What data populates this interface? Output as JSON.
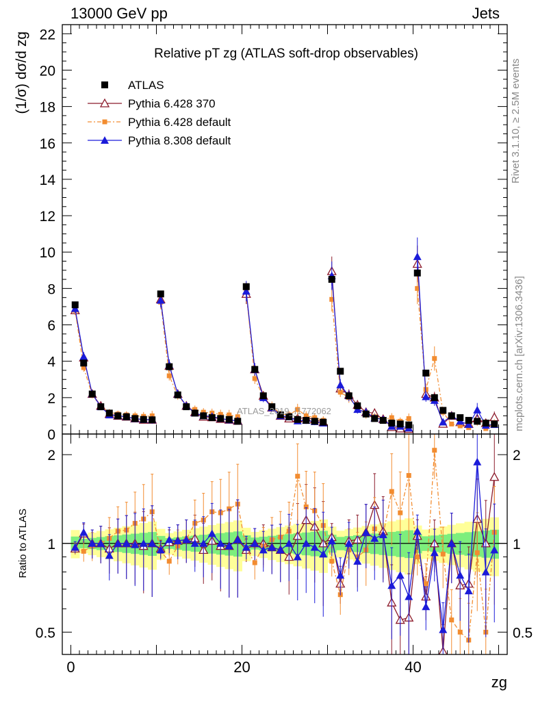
{
  "header": {
    "left": "13000 GeV pp",
    "right": "Jets"
  },
  "side_labels": {
    "rivet": "Rivet 3.1.10, ≥ 2.5M events",
    "mcplots": "mcplots.cern.ch [arXiv:1306.3436]"
  },
  "watermark": "ATLAS_2019_I1772062",
  "chart_data": {
    "type": "scatter",
    "title": "Relative pT zg (ATLAS soft-drop observables)",
    "xlabel": "zg",
    "ylabel": "(1/σ) dσ/d zg",
    "ratio_ylabel": "Ratio to ATLAS",
    "xlim": [
      -1,
      51
    ],
    "ylim": [
      0,
      22.5
    ],
    "ratio_ylim": [
      0.42,
      2.35
    ],
    "ratio_scale": "log",
    "x_ticks": [
      "0",
      "20",
      "40"
    ],
    "y_ticks": [
      "0",
      "2",
      "4",
      "6",
      "8",
      "10",
      "12",
      "14",
      "16",
      "18",
      "20",
      "22"
    ],
    "ratio_ticks": [
      "0.5",
      "1",
      "2"
    ],
    "legend": [
      "ATLAS",
      "Pythia 6.428 370",
      "Pythia 6.428 default",
      "Pythia 8.308 default"
    ],
    "x": [
      0.5,
      1.5,
      2.5,
      3.5,
      4.5,
      5.5,
      6.5,
      7.5,
      8.5,
      9.5,
      10.5,
      11.5,
      12.5,
      13.5,
      14.5,
      15.5,
      16.5,
      17.5,
      18.5,
      19.5,
      20.5,
      21.5,
      22.5,
      23.5,
      24.5,
      25.5,
      26.5,
      27.5,
      28.5,
      29.5,
      30.5,
      31.5,
      32.5,
      33.5,
      34.5,
      35.5,
      36.5,
      37.5,
      38.5,
      39.5,
      40.5,
      41.5,
      42.5,
      43.5,
      44.5,
      45.5,
      46.5,
      47.5,
      48.5,
      49.5
    ],
    "series": [
      {
        "name": "ATLAS",
        "values": [
          7.1,
          3.9,
          2.2,
          1.5,
          1.15,
          1.0,
          0.95,
          0.85,
          0.8,
          0.78,
          7.7,
          3.7,
          2.15,
          1.5,
          1.15,
          1.0,
          0.9,
          0.85,
          0.8,
          0.7,
          8.1,
          3.55,
          2.1,
          1.5,
          1.05,
          0.95,
          0.8,
          0.75,
          0.7,
          0.65,
          8.5,
          3.45,
          2.1,
          1.55,
          1.1,
          0.85,
          0.75,
          0.6,
          0.55,
          0.5,
          8.85,
          3.35,
          2.0,
          1.3,
          1.0,
          0.9,
          0.75,
          0.7,
          0.6,
          0.55
        ]
      },
      {
        "name": "Pythia 6.428 370",
        "values": [
          6.8,
          4.2,
          2.2,
          1.55,
          1.1,
          1.0,
          0.95,
          0.85,
          0.78,
          0.78,
          7.4,
          3.75,
          2.2,
          1.55,
          1.2,
          0.95,
          0.92,
          0.83,
          0.78,
          0.72,
          7.7,
          3.55,
          2.1,
          1.45,
          1.0,
          0.85,
          0.85,
          0.9,
          0.8,
          0.65,
          8.95,
          2.5,
          2.15,
          1.6,
          1.2,
          1.15,
          0.82,
          0.38,
          0.3,
          0.28,
          9.35,
          2.2,
          2.0,
          0.56,
          1.0,
          0.65,
          0.55,
          0.85,
          0.6,
          0.92
        ]
      },
      {
        "name": "Pythia 6.428 default",
        "values": [
          6.8,
          3.65,
          2.15,
          1.5,
          1.2,
          1.1,
          1.05,
          1.0,
          0.97,
          1.0,
          7.25,
          3.2,
          2.1,
          1.55,
          1.35,
          1.2,
          1.15,
          1.08,
          1.05,
          0.95,
          7.8,
          3.05,
          2.05,
          1.55,
          1.1,
          1.05,
          1.35,
          1.0,
          0.9,
          0.75,
          7.4,
          2.3,
          2.0,
          1.4,
          1.05,
          0.95,
          0.8,
          0.9,
          0.7,
          0.85,
          8.0,
          2.45,
          4.15,
          1.2,
          0.55,
          0.45,
          0.35,
          0.65,
          0.3,
          0.6
        ]
      },
      {
        "name": "Pythia 8.308 default",
        "values": [
          6.9,
          4.25,
          2.2,
          1.5,
          1.05,
          1.0,
          0.95,
          0.84,
          0.8,
          0.78,
          7.35,
          3.8,
          2.2,
          1.55,
          1.15,
          1.0,
          0.97,
          0.85,
          0.78,
          0.72,
          7.85,
          3.55,
          2.0,
          1.45,
          1.0,
          0.95,
          0.72,
          0.75,
          0.68,
          0.6,
          8.7,
          2.7,
          2.1,
          1.35,
          1.2,
          0.88,
          0.8,
          0.43,
          0.43,
          0.33,
          9.75,
          2.05,
          1.85,
          0.66,
          1.0,
          0.7,
          0.52,
          1.32,
          0.48,
          0.52
        ]
      }
    ],
    "ratios": [
      {
        "name": "Pythia 6.428 370",
        "values": [
          0.96,
          1.08,
          1.0,
          1.0,
          0.96,
          1.0,
          1.0,
          1.0,
          0.98,
          1.0,
          0.96,
          1.01,
          1.02,
          1.03,
          1.04,
          0.95,
          1.02,
          0.98,
          0.98,
          1.03,
          0.95,
          1.0,
          1.0,
          0.97,
          0.95,
          0.9,
          1.06,
          1.2,
          1.14,
          1.0,
          1.05,
          0.73,
          1.02,
          1.03,
          1.09,
          1.35,
          1.1,
          0.63,
          0.55,
          0.56,
          1.06,
          0.66,
          1.0,
          0.43,
          1.0,
          0.72,
          0.73,
          1.21,
          1.0,
          1.68
        ]
      },
      {
        "name": "Pythia 6.428 default",
        "values": [
          0.96,
          0.94,
          0.98,
          1.0,
          1.04,
          1.1,
          1.11,
          1.17,
          1.21,
          1.28,
          0.94,
          0.87,
          0.98,
          1.03,
          1.17,
          1.2,
          1.28,
          1.27,
          1.31,
          1.36,
          0.96,
          0.86,
          0.98,
          1.03,
          1.05,
          1.1,
          1.69,
          1.33,
          1.29,
          1.15,
          0.87,
          0.67,
          0.95,
          0.9,
          0.95,
          1.12,
          1.07,
          1.5,
          1.27,
          1.7,
          0.9,
          0.73,
          2.07,
          0.92,
          0.55,
          0.5,
          0.47,
          0.93,
          0.5,
          1.09
        ]
      },
      {
        "name": "Pythia 8.308 default",
        "values": [
          0.97,
          1.09,
          1.0,
          1.0,
          0.91,
          1.0,
          1.0,
          0.99,
          1.0,
          1.0,
          0.95,
          1.03,
          1.02,
          1.03,
          1.0,
          1.0,
          1.08,
          1.0,
          0.98,
          1.03,
          0.97,
          1.0,
          0.95,
          0.97,
          0.95,
          1.0,
          0.9,
          1.0,
          0.97,
          0.92,
          1.02,
          0.78,
          1.0,
          0.87,
          1.09,
          1.04,
          1.07,
          0.72,
          0.78,
          0.66,
          1.1,
          0.61,
          0.93,
          0.51,
          1.0,
          0.78,
          0.69,
          1.89,
          0.8,
          0.95
        ]
      }
    ],
    "colors": {
      "atlas": "#000000",
      "p6_370": "#8b1a2b",
      "p6_default": "#f28c30",
      "p8_default": "#1b1bd9",
      "band_outer": "#ffff99",
      "band_inner": "#7dee7d"
    }
  }
}
